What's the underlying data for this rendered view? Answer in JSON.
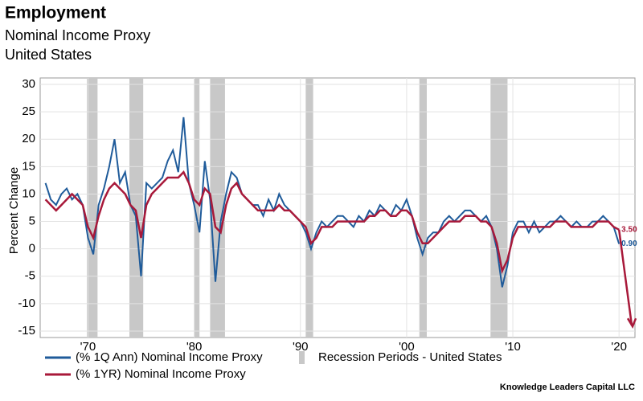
{
  "chart_data": {
    "type": "line",
    "title": "Employment",
    "subtitle": [
      "Nominal Income Proxy",
      "United States"
    ],
    "ylabel": "Percent Change",
    "source": "Knowledge Leaders Capital LLC",
    "xlim": [
      1965.5,
      2021.5
    ],
    "ylim": [
      -15,
      30
    ],
    "yticks": [
      -15,
      -10,
      -5,
      0,
      5,
      10,
      15,
      20,
      25,
      30
    ],
    "xticks": [
      {
        "value": 1970,
        "label": "'70"
      },
      {
        "value": 1980,
        "label": "'80"
      },
      {
        "value": 1990,
        "label": "'90"
      },
      {
        "value": 2000,
        "label": "'00"
      },
      {
        "value": 2010,
        "label": "'10"
      },
      {
        "value": 2020,
        "label": "'20"
      }
    ],
    "grid": true,
    "recession_label": "Recession Periods - United States",
    "recession_color": "#c8c8c8",
    "recessions": [
      [
        1969.9,
        1970.9
      ],
      [
        1973.9,
        1975.2
      ],
      [
        1980.0,
        1980.5
      ],
      [
        1981.5,
        1982.9
      ],
      [
        1990.5,
        1991.2
      ],
      [
        2001.2,
        2001.9
      ],
      [
        2007.9,
        2009.5
      ]
    ],
    "x": [
      1966,
      1966.5,
      1967,
      1967.5,
      1968,
      1968.5,
      1969,
      1969.5,
      1970,
      1970.5,
      1971,
      1971.5,
      1972,
      1972.5,
      1973,
      1973.5,
      1974,
      1974.5,
      1975,
      1975.5,
      1976,
      1976.5,
      1977,
      1977.5,
      1978,
      1978.5,
      1979,
      1979.5,
      1980,
      1980.5,
      1981,
      1981.5,
      1982,
      1982.5,
      1983,
      1983.5,
      1984,
      1984.5,
      1985,
      1985.5,
      1986,
      1986.5,
      1987,
      1987.5,
      1988,
      1988.5,
      1989,
      1989.5,
      1990,
      1990.5,
      1991,
      1991.5,
      1992,
      1992.5,
      1993,
      1993.5,
      1994,
      1994.5,
      1995,
      1995.5,
      1996,
      1996.5,
      1997,
      1997.5,
      1998,
      1998.5,
      1999,
      1999.5,
      2000,
      2000.5,
      2001,
      2001.5,
      2002,
      2002.5,
      2003,
      2003.5,
      2004,
      2004.5,
      2005,
      2005.5,
      2006,
      2006.5,
      2007,
      2007.5,
      2008,
      2008.5,
      2009,
      2009.5,
      2010,
      2010.5,
      2011,
      2011.5,
      2012,
      2012.5,
      2013,
      2013.5,
      2014,
      2014.5,
      2015,
      2015.5,
      2016,
      2016.5,
      2017,
      2017.5,
      2018,
      2018.5,
      2019,
      2019.5,
      2020
    ],
    "series": [
      {
        "name": "(% 1Q Ann) Nominal Income Proxy",
        "color": "#1f5b9a",
        "end_label": "0.90",
        "values": [
          12,
          9,
          8,
          10,
          11,
          9,
          10,
          8,
          2,
          -1,
          8,
          11,
          15,
          20,
          12,
          14,
          8,
          6,
          -5,
          12,
          11,
          12,
          13,
          16,
          18,
          14,
          24,
          12,
          8,
          3,
          16,
          9,
          -6,
          5,
          10,
          14,
          13,
          10,
          9,
          8,
          8,
          6,
          9,
          7,
          10,
          8,
          7,
          6,
          5,
          3,
          0,
          3,
          5,
          4,
          5,
          6,
          6,
          5,
          4,
          6,
          5,
          7,
          6,
          8,
          7,
          6,
          8,
          7,
          9,
          6,
          2,
          -1,
          2,
          3,
          3,
          5,
          6,
          5,
          6,
          7,
          7,
          6,
          5,
          6,
          4,
          0,
          -7,
          -3,
          3,
          5,
          5,
          3,
          5,
          3,
          4,
          5,
          5,
          6,
          5,
          4,
          5,
          4,
          4,
          5,
          5,
          6,
          5,
          4,
          0.9
        ]
      },
      {
        "name": "(% 1YR) Nominal Income Proxy",
        "color": "#a8193a",
        "end_label": "3.50",
        "values": [
          9,
          8,
          7,
          8,
          9,
          10,
          9,
          8,
          4,
          2,
          6,
          9,
          11,
          12,
          11,
          10,
          8,
          7,
          2,
          8,
          10,
          11,
          12,
          13,
          13,
          13,
          14,
          12,
          9,
          8,
          11,
          10,
          4,
          3,
          8,
          11,
          12,
          10,
          9,
          8,
          7,
          7,
          7,
          7,
          8,
          7,
          7,
          6,
          5,
          4,
          1,
          2,
          4,
          4,
          4,
          5,
          5,
          5,
          5,
          5,
          5,
          6,
          6,
          7,
          7,
          6,
          6,
          7,
          7,
          6,
          3,
          1,
          1,
          2,
          3,
          4,
          5,
          5,
          5,
          6,
          6,
          6,
          5,
          5,
          4,
          1,
          -4,
          -2,
          2,
          4,
          4,
          4,
          4,
          4,
          4,
          4,
          5,
          5,
          5,
          4,
          4,
          4,
          4,
          4,
          5,
          5,
          5,
          4,
          3.5
        ],
        "projection": {
          "x": [
            2020,
            2021.2
          ],
          "y": [
            3.5,
            -14
          ]
        }
      }
    ]
  }
}
